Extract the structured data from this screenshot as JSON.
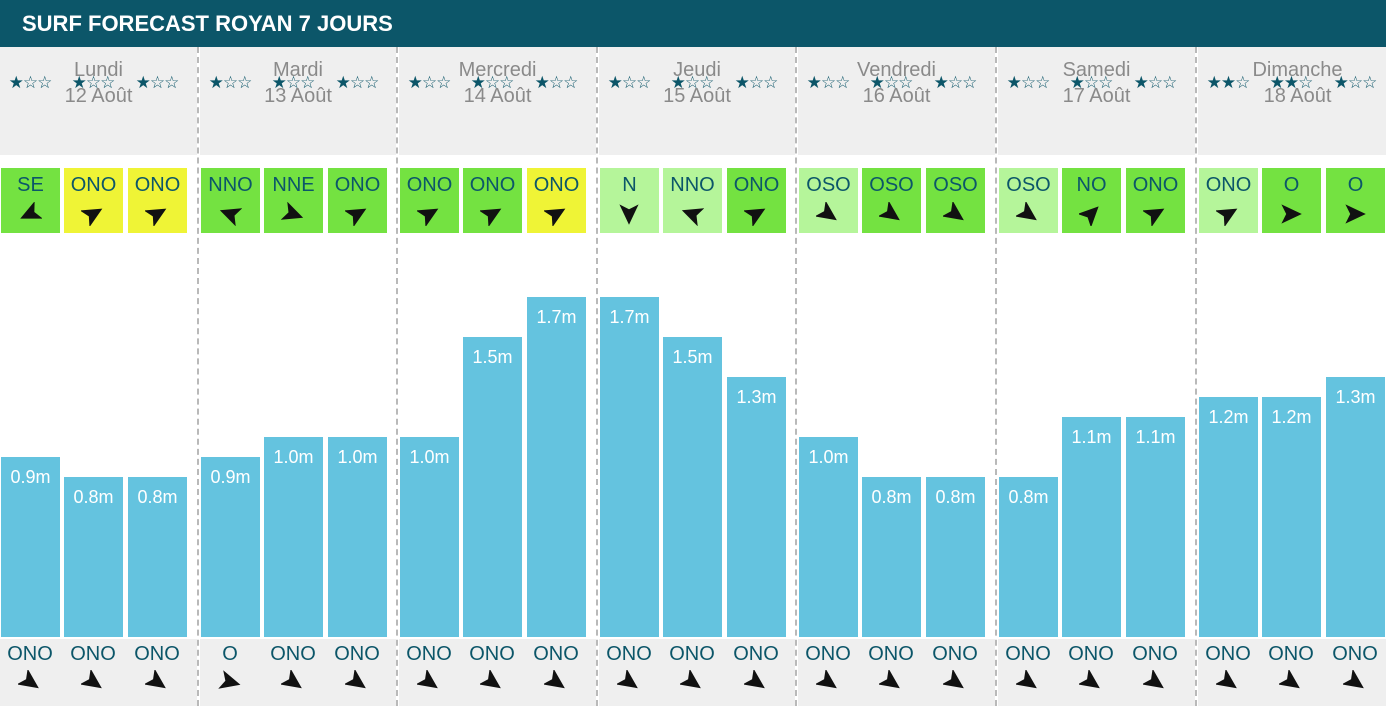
{
  "header": {
    "title": "SURF FORECAST ROYAN 7 JOURS"
  },
  "colors": {
    "header": "#0c5669",
    "wave_bar": "#64c3df",
    "wind_good": "#74e241",
    "wind_light": "#b5f59a",
    "wind_bad": "#eff436",
    "text_dark": "#0c5669"
  },
  "icons": {
    "star_filled": "★",
    "star_empty": "☆",
    "wind_arrow": "arrow-icon",
    "swell_arrow": "arrow-icon"
  },
  "chart_data": {
    "type": "bar",
    "ylim": [
      0,
      2.5
    ],
    "unit": "m",
    "days": [
      {
        "name": "Lundi",
        "date": "12 Août",
        "slots": [
          {
            "stars": 1,
            "wind_dir": "SE",
            "wind_color": "#74e241",
            "wind_deg": 155,
            "wave": 0.9,
            "wave_label": "0.9m",
            "swell_dir": "ONO",
            "swell_deg": 35
          },
          {
            "stars": 1,
            "wind_dir": "ONO",
            "wind_color": "#eff436",
            "wind_deg": -30,
            "wave": 0.8,
            "wave_label": "0.8m",
            "swell_dir": "ONO",
            "swell_deg": 35
          },
          {
            "stars": 1,
            "wind_dir": "ONO",
            "wind_color": "#eff436",
            "wind_deg": -30,
            "wave": 0.8,
            "wave_label": "0.8m",
            "swell_dir": "ONO",
            "swell_deg": 35
          }
        ]
      },
      {
        "name": "Mardi",
        "date": "13 Août",
        "slots": [
          {
            "stars": 1,
            "wind_dir": "NNO",
            "wind_color": "#74e241",
            "wind_deg": -160,
            "wave": 0.9,
            "wave_label": "0.9m",
            "swell_dir": "O",
            "swell_deg": 15
          },
          {
            "stars": 1,
            "wind_dir": "NNE",
            "wind_color": "#74e241",
            "wind_deg": 20,
            "wave": 1.0,
            "wave_label": "1.0m",
            "swell_dir": "ONO",
            "swell_deg": 35
          },
          {
            "stars": 1,
            "wind_dir": "ONO",
            "wind_color": "#74e241",
            "wind_deg": -30,
            "wave": 1.0,
            "wave_label": "1.0m",
            "swell_dir": "ONO",
            "swell_deg": 35
          }
        ]
      },
      {
        "name": "Mercredi",
        "date": "14 Août",
        "slots": [
          {
            "stars": 1,
            "wind_dir": "ONO",
            "wind_color": "#74e241",
            "wind_deg": -30,
            "wave": 1.0,
            "wave_label": "1.0m",
            "swell_dir": "ONO",
            "swell_deg": 35
          },
          {
            "stars": 1,
            "wind_dir": "ONO",
            "wind_color": "#74e241",
            "wind_deg": -30,
            "wave": 1.5,
            "wave_label": "1.5m",
            "swell_dir": "ONO",
            "swell_deg": 35
          },
          {
            "stars": 1,
            "wind_dir": "ONO",
            "wind_color": "#eff436",
            "wind_deg": -30,
            "wave": 1.7,
            "wave_label": "1.7m",
            "swell_dir": "ONO",
            "swell_deg": 35
          }
        ]
      },
      {
        "name": "Jeudi",
        "date": "15 Août",
        "slots": [
          {
            "stars": 1,
            "wind_dir": "N",
            "wind_color": "#b5f59a",
            "wind_deg": 90,
            "wave": 1.7,
            "wave_label": "1.7m",
            "swell_dir": "ONO",
            "swell_deg": 35
          },
          {
            "stars": 1,
            "wind_dir": "NNO",
            "wind_color": "#b5f59a",
            "wind_deg": -160,
            "wave": 1.5,
            "wave_label": "1.5m",
            "swell_dir": "ONO",
            "swell_deg": 35
          },
          {
            "stars": 1,
            "wind_dir": "ONO",
            "wind_color": "#74e241",
            "wind_deg": -30,
            "wave": 1.3,
            "wave_label": "1.3m",
            "swell_dir": "ONO",
            "swell_deg": 35
          }
        ]
      },
      {
        "name": "Vendredi",
        "date": "16 Août",
        "slots": [
          {
            "stars": 1,
            "wind_dir": "OSO",
            "wind_color": "#b5f59a",
            "wind_deg": 35,
            "wave": 1.0,
            "wave_label": "1.0m",
            "swell_dir": "ONO",
            "swell_deg": 35
          },
          {
            "stars": 1,
            "wind_dir": "OSO",
            "wind_color": "#74e241",
            "wind_deg": 35,
            "wave": 0.8,
            "wave_label": "0.8m",
            "swell_dir": "ONO",
            "swell_deg": 35
          },
          {
            "stars": 1,
            "wind_dir": "OSO",
            "wind_color": "#74e241",
            "wind_deg": 35,
            "wave": 0.8,
            "wave_label": "0.8m",
            "swell_dir": "ONO",
            "swell_deg": 35
          }
        ]
      },
      {
        "name": "Samedi",
        "date": "17 Août",
        "slots": [
          {
            "stars": 1,
            "wind_dir": "OSO",
            "wind_color": "#b5f59a",
            "wind_deg": 35,
            "wave": 0.8,
            "wave_label": "0.8m",
            "swell_dir": "ONO",
            "swell_deg": 35
          },
          {
            "stars": 1,
            "wind_dir": "NO",
            "wind_color": "#74e241",
            "wind_deg": -45,
            "wave": 1.1,
            "wave_label": "1.1m",
            "swell_dir": "ONO",
            "swell_deg": 35
          },
          {
            "stars": 1,
            "wind_dir": "ONO",
            "wind_color": "#74e241",
            "wind_deg": -30,
            "wave": 1.1,
            "wave_label": "1.1m",
            "swell_dir": "ONO",
            "swell_deg": 35
          }
        ]
      },
      {
        "name": "Dimanche",
        "date": "18 Août",
        "slots": [
          {
            "stars": 2,
            "wind_dir": "ONO",
            "wind_color": "#b5f59a",
            "wind_deg": -30,
            "wave": 1.2,
            "wave_label": "1.2m",
            "swell_dir": "ONO",
            "swell_deg": 35
          },
          {
            "stars": 2,
            "wind_dir": "O",
            "wind_color": "#74e241",
            "wind_deg": 0,
            "wave": 1.2,
            "wave_label": "1.2m",
            "swell_dir": "ONO",
            "swell_deg": 35
          },
          {
            "stars": 1,
            "wind_dir": "O",
            "wind_color": "#74e241",
            "wind_deg": 0,
            "wave": 1.3,
            "wave_label": "1.3m",
            "swell_dir": "ONO",
            "swell_deg": 35
          }
        ]
      }
    ]
  }
}
